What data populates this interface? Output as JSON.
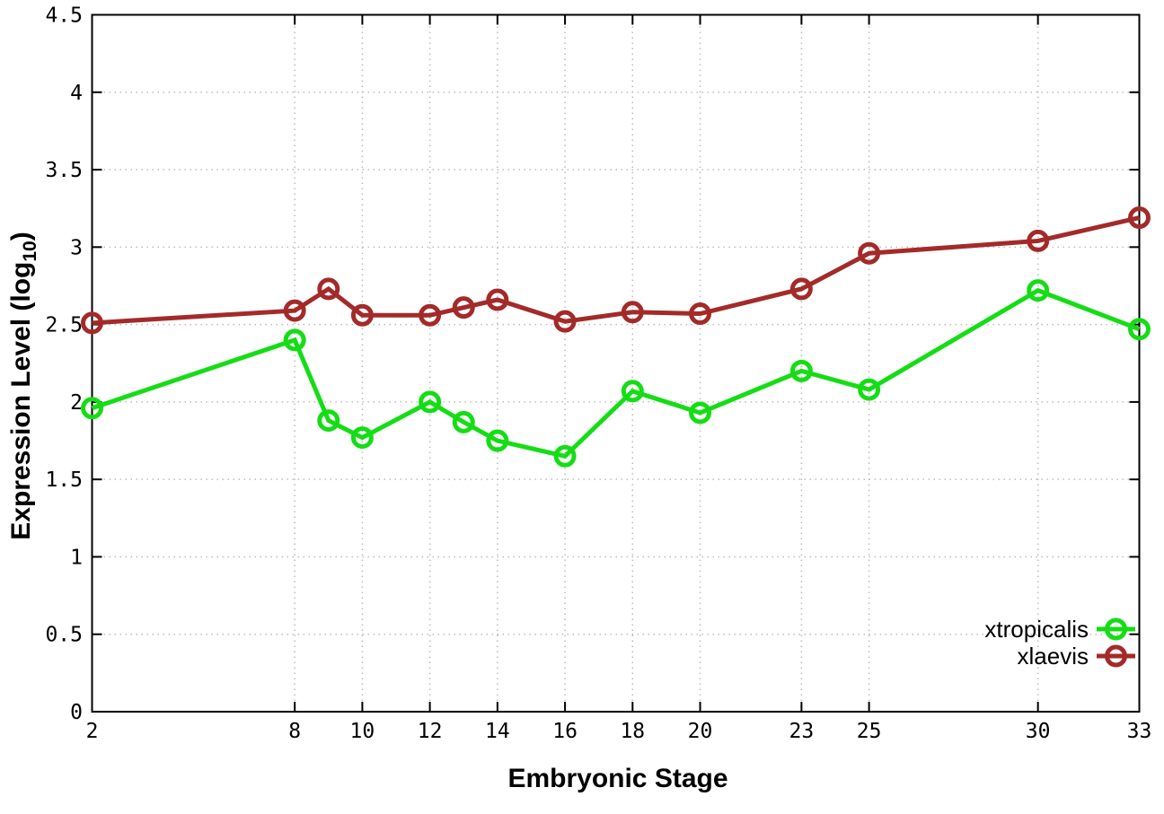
{
  "chart_data": {
    "type": "line",
    "title": "",
    "xlabel": "Embryonic Stage",
    "ylabel": "Expression Level (log10)",
    "ylabel_parts": {
      "main": "Expression Level (log",
      "sub": "10",
      "end": ")"
    },
    "xlim": [
      2,
      33
    ],
    "ylim": [
      0,
      4.5
    ],
    "x_ticks": [
      2,
      8,
      10,
      12,
      14,
      16,
      18,
      20,
      23,
      25,
      30,
      33
    ],
    "x_tick_labels": [
      "2",
      "8",
      "10",
      "12",
      "14",
      "16",
      "18",
      "20",
      "23",
      "25",
      "30",
      "33"
    ],
    "y_ticks": [
      0,
      0.5,
      1,
      1.5,
      2,
      2.5,
      3,
      3.5,
      4,
      4.5
    ],
    "y_tick_labels": [
      "0",
      "0.5",
      "1",
      "1.5",
      "2",
      "2.5",
      "3",
      "3.5",
      "4",
      "4.5"
    ],
    "grid": true,
    "legend_position": "bottom-right",
    "x": [
      2,
      8,
      9,
      10,
      12,
      13,
      14,
      16,
      18,
      20,
      23,
      25,
      30,
      33
    ],
    "series": [
      {
        "name": "xtropicalis",
        "color": "#15dd15",
        "values": [
          1.96,
          2.4,
          1.88,
          1.77,
          2.0,
          1.87,
          1.75,
          1.65,
          2.07,
          1.93,
          2.2,
          2.08,
          2.72,
          2.47
        ]
      },
      {
        "name": "xlaevis",
        "color": "#a42a2a",
        "values": [
          2.51,
          2.59,
          2.73,
          2.56,
          2.56,
          2.61,
          2.66,
          2.52,
          2.58,
          2.57,
          2.73,
          2.96,
          3.04,
          3.19
        ]
      }
    ]
  },
  "colors": {
    "background": "#ffffff",
    "axis": "#000000",
    "grid": "#bcbcbc",
    "tick_text": "#000000"
  }
}
